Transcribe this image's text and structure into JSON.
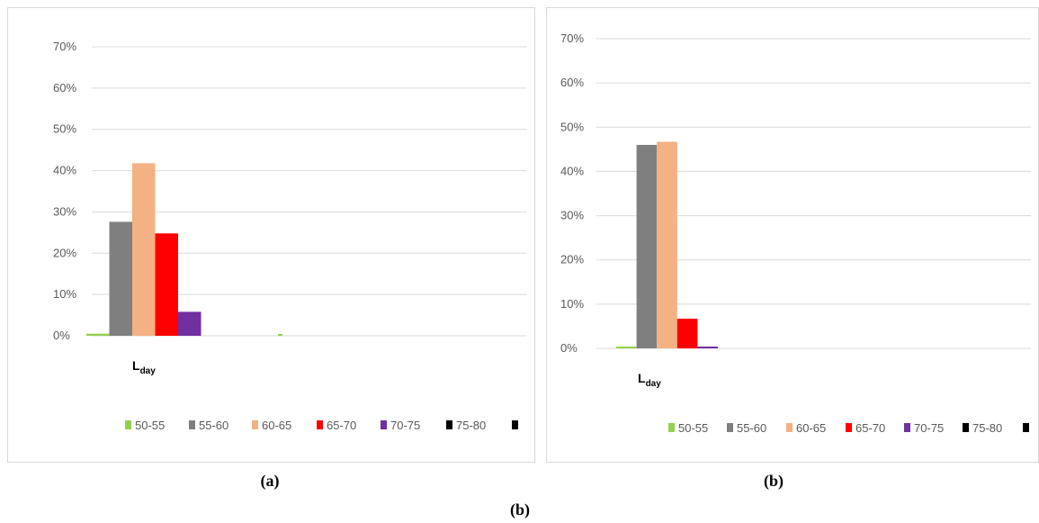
{
  "chart_data": [
    {
      "type": "bar",
      "categories": [
        "Lday"
      ],
      "category_label": {
        "main": "L",
        "sub": "day"
      },
      "yticks": [
        "0%",
        "10%",
        "20%",
        "30%",
        "40%",
        "50%",
        "60%",
        "70%"
      ],
      "ylim": [
        0,
        70
      ],
      "grid": true,
      "legend_position": "bottom",
      "series": [
        {
          "name": "50-55",
          "values": [
            0.5
          ],
          "color": "#92d050"
        },
        {
          "name": "55-60",
          "values": [
            27.6
          ],
          "color": "#7f7f7f"
        },
        {
          "name": "60-65",
          "values": [
            41.8
          ],
          "color": "#f4b183"
        },
        {
          "name": "65-70",
          "values": [
            24.8
          ],
          "color": "#ff0000"
        },
        {
          "name": "70-75",
          "values": [
            5.8
          ],
          "color": "#7030a0"
        },
        {
          "name": "75-80",
          "values": [
            0
          ],
          "color": "#000000"
        },
        {
          "name": "",
          "values": [
            0
          ],
          "color": "#000000"
        }
      ],
      "caption": "(a)"
    },
    {
      "type": "bar",
      "categories": [
        "Lday"
      ],
      "category_label": {
        "main": "L",
        "sub": "day"
      },
      "yticks": [
        "0%",
        "10%",
        "20%",
        "30%",
        "40%",
        "50%",
        "60%",
        "70%"
      ],
      "ylim": [
        0,
        70
      ],
      "grid": true,
      "legend_position": "bottom",
      "series": [
        {
          "name": "50-55",
          "values": [
            0.3
          ],
          "color": "#92d050"
        },
        {
          "name": "55-60",
          "values": [
            46.0
          ],
          "color": "#7f7f7f"
        },
        {
          "name": "60-65",
          "values": [
            46.7
          ],
          "color": "#f4b183"
        },
        {
          "name": "65-70",
          "values": [
            6.7
          ],
          "color": "#ff0000"
        },
        {
          "name": "70-75",
          "values": [
            0.3
          ],
          "color": "#7030a0"
        },
        {
          "name": "75-80",
          "values": [
            0
          ],
          "color": "#000000"
        },
        {
          "name": "",
          "values": [
            0
          ],
          "color": "#000000"
        }
      ],
      "caption": "(b)"
    }
  ],
  "figure_caption": "(b)"
}
